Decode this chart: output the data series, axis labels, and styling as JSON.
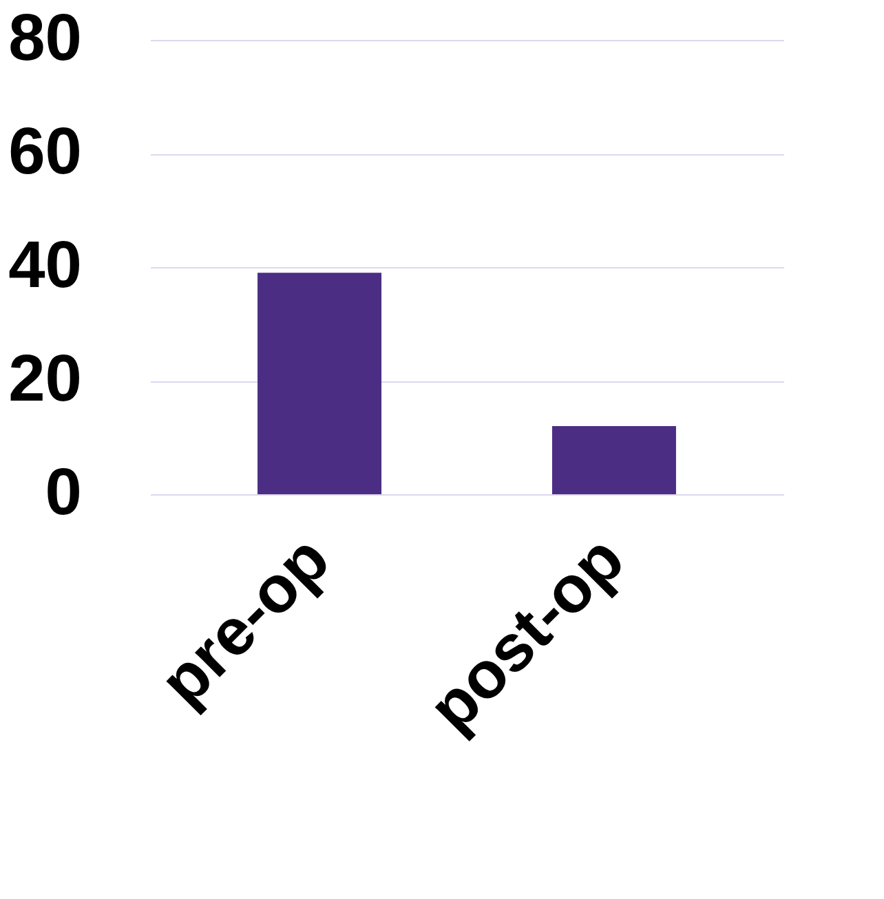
{
  "chart_data": {
    "type": "bar",
    "categories": [
      "pre-op",
      "post-op"
    ],
    "values": [
      39,
      12
    ],
    "color": "#4b2e83",
    "ylim": [
      0,
      80
    ],
    "yticks": [
      0,
      20,
      40,
      60,
      80
    ],
    "grid": "y"
  }
}
